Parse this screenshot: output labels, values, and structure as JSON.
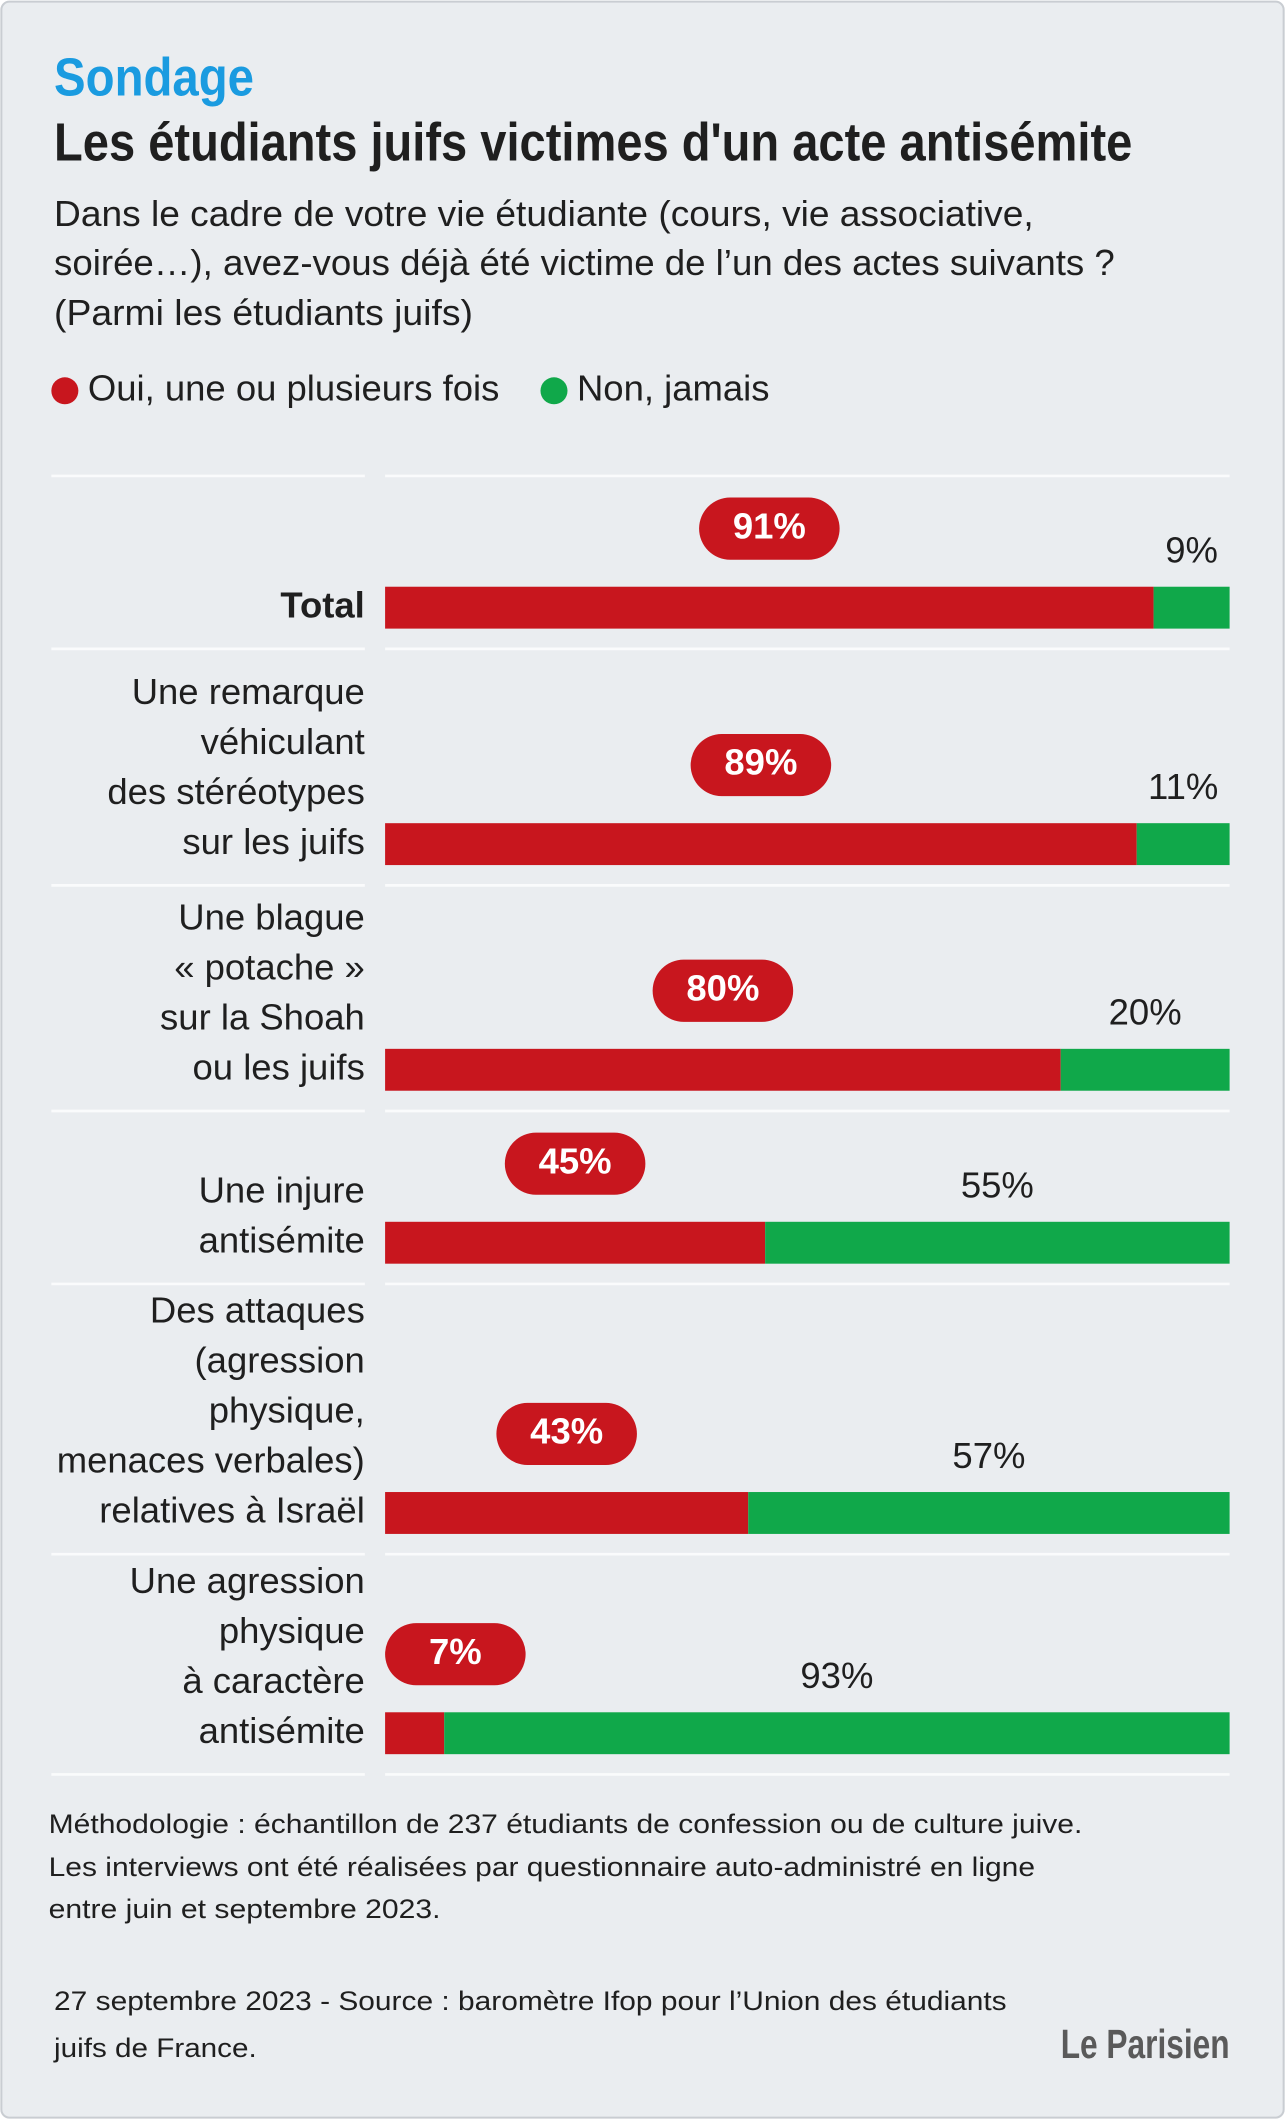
{
  "kicker": "Sondage",
  "chart_data": {
    "type": "stacked-bar-horizontal",
    "title": "Les étudiants juifs victimes d'un acte antisémite",
    "subtitle": [
      "Dans le cadre de votre vie étudiante (cours, vie associative,",
      "soirée…), avez-vous déjà été victime de l’un des actes suivants ?",
      "(Parmi les étudiants juifs)"
    ],
    "categories": [
      [
        "Total"
      ],
      [
        "Une remarque",
        "véhiculant",
        "des stéréotypes",
        "sur les juifs"
      ],
      [
        "Une blague",
        "« potache »",
        "sur la Shoah",
        "ou les juifs"
      ],
      [
        "Une injure",
        "antisémite"
      ],
      [
        "Des attaques",
        "(agression",
        "physique,",
        "menaces verbales)",
        "relatives à Israël"
      ],
      [
        "Une agression",
        "physique",
        "à caractère",
        "antisémite"
      ]
    ],
    "series": [
      {
        "name": "Oui, une ou plusieurs fois",
        "color": "#c8161e",
        "values": [
          91,
          89,
          80,
          45,
          43,
          7
        ],
        "value_labels": [
          "91%",
          "89%",
          "80%",
          "45%",
          "43%",
          "7%"
        ]
      },
      {
        "name": "Non, jamais",
        "color": "#10a84a",
        "values": [
          9,
          11,
          20,
          55,
          57,
          93
        ],
        "value_labels": [
          "9%",
          "11%",
          "20%",
          "55%",
          "57%",
          "93%"
        ]
      }
    ],
    "xlim": [
      0,
      100
    ]
  },
  "notes": [
    "Méthodologie : échantillon de 237 étudiants de confession ou de culture juive.",
    "Les interviews ont été réalisées par questionnaire auto-administré en ligne",
    "entre juin et septembre 2023."
  ],
  "source": [
    "27 septembre 2023 - Source : baromètre Ifop pour l’Union des étudiants",
    "juifs de France."
  ],
  "logo": "Le Parisien"
}
